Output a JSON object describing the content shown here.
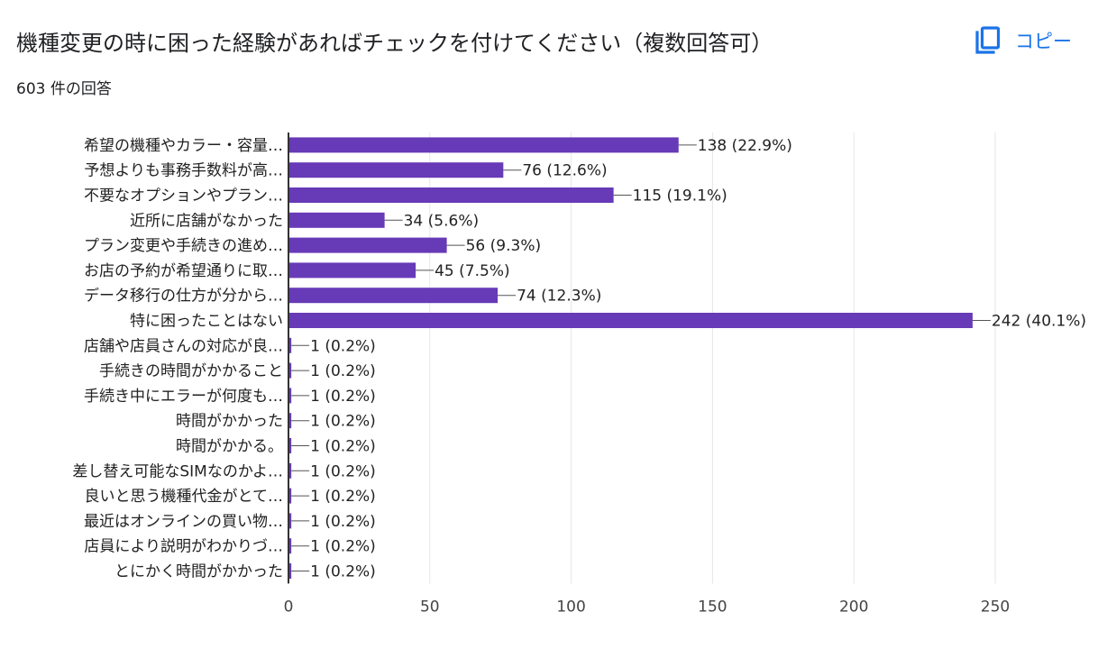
{
  "header": {
    "title": "機種変更の時に困った経験があればチェックを付けてください（複数回答可）",
    "response_count": "603 件の回答",
    "copy_label": "コピー"
  },
  "colors": {
    "bar": "#673ab7",
    "axis": "#333333",
    "grid": "#e6e6e6",
    "copy_accent": "#1a73e8"
  },
  "icons": {
    "copy": "copy-icon"
  },
  "chart_data": {
    "type": "bar",
    "orientation": "horizontal",
    "categories": [
      "希望の機種やカラー・容量…",
      "予想よりも事務手数料が高…",
      "不要なオプションやプラン…",
      "近所に店舗がなかった",
      "プラン変更や手続きの進め…",
      "お店の予約が希望通りに取…",
      "データ移行の仕方が分から…",
      "特に困ったことはない",
      "店舗や店員さんの対応が良…",
      "手続きの時間がかかること",
      "手続き中にエラーが何度も…",
      "時間がかかった",
      "時間がかかる。",
      "差し替え可能なSIMなのかよ…",
      "良いと思う機種代金がとて…",
      "最近はオンラインの買い物…",
      "店員により説明がわかりづ…",
      "とにかく時間がかかった"
    ],
    "values": [
      138,
      76,
      115,
      34,
      56,
      45,
      74,
      242,
      1,
      1,
      1,
      1,
      1,
      1,
      1,
      1,
      1,
      1
    ],
    "data_labels": [
      "138 (22.9%)",
      "76 (12.6%)",
      "115 (19.1%)",
      "34 (5.6%)",
      "56 (9.3%)",
      "45 (7.5%)",
      "74 (12.3%)",
      "242 (40.1%)",
      "1 (0.2%)",
      "1 (0.2%)",
      "1 (0.2%)",
      "1 (0.2%)",
      "1 (0.2%)",
      "1 (0.2%)",
      "1 (0.2%)",
      "1 (0.2%)",
      "1 (0.2%)",
      "1 (0.2%)"
    ],
    "xlim": [
      0,
      250
    ],
    "xticks": [
      0,
      50,
      100,
      150,
      200,
      250
    ],
    "grid": true,
    "legend": "none"
  }
}
